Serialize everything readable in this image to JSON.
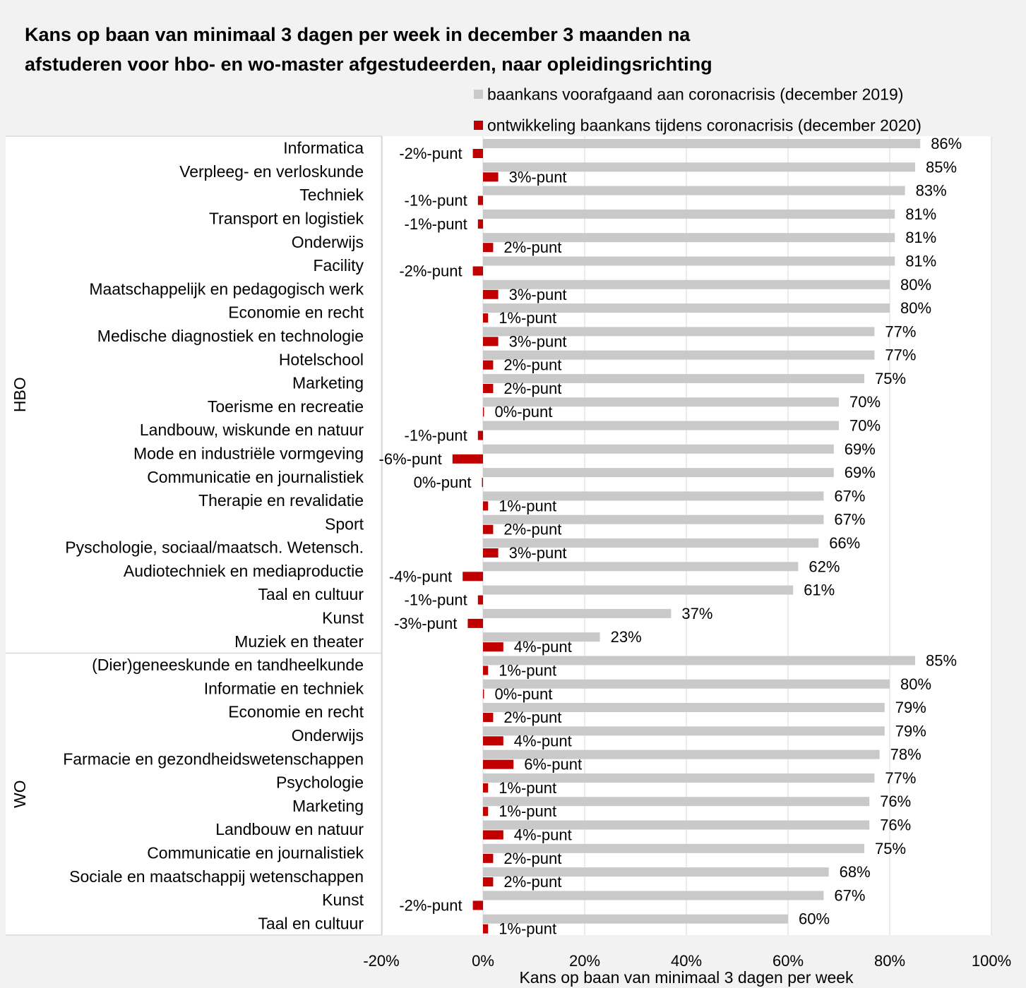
{
  "page": {
    "background": "#f2f2f2",
    "plot_background": "#ffffff",
    "gridline_color": "#d9d9d9"
  },
  "chart_data": {
    "type": "bar",
    "orientation": "horizontal",
    "title_lines": [
      "Kans op baan van minimaal 3 dagen per week in december 3 maanden na",
      "afstuderen voor hbo- en wo-master afgestudeerden, naar opleidingsrichting"
    ],
    "xlabel": "Kans op baan van minimaal 3 dagen per week",
    "xlim": [
      -20,
      100
    ],
    "xticks": [
      -20,
      0,
      20,
      40,
      60,
      80,
      100
    ],
    "xtick_labels": [
      "-20%",
      "0%",
      "20%",
      "40%",
      "60%",
      "80%",
      "100%"
    ],
    "grid": true,
    "legend": "top-right",
    "groups": [
      {
        "name": "HBO",
        "categories": [
          "Informatica",
          "Verpleeg- en verloskunde",
          "Techniek",
          "Transport en logistiek",
          "Onderwijs",
          "Facility",
          "Maatschappelijk en pedagogisch werk",
          "Economie en recht",
          "Medische diagnostiek en technologie",
          "Hotelschool",
          "Marketing",
          "Toerisme en recreatie",
          "Landbouw, wiskunde en natuur",
          "Mode en industriële vormgeving",
          "Communicatie en journalistiek",
          "Therapie en revalidatie",
          "Sport",
          "Pyschologie, sociaal/maatsch. Wetensch.",
          "Audiotechniek en mediaproductie",
          "Taal en cultuur",
          "Kunst",
          "Muziek en theater"
        ]
      },
      {
        "name": "WO",
        "categories": [
          "(Dier)geneeskunde en tandheelkunde",
          "Informatie en techniek",
          "Economie en recht",
          "Onderwijs",
          "Farmacie en gezondheidswetenschappen",
          "Psychologie",
          "Marketing",
          "Landbouw en natuur",
          "Communicatie en journalistiek",
          "Sociale en maatschappij wetenschappen",
          "Kunst",
          "Taal en cultuur"
        ]
      }
    ],
    "series": [
      {
        "name": "baankans voorafgaand aan coronacrisis (december 2019)",
        "color": "#c9c9c9",
        "values": [
          86,
          85,
          83,
          81,
          81,
          81,
          80,
          80,
          77,
          77,
          75,
          70,
          70,
          69,
          69,
          67,
          67,
          66,
          62,
          61,
          37,
          23,
          85,
          80,
          79,
          79,
          78,
          77,
          76,
          76,
          75,
          68,
          67,
          60
        ],
        "labels": [
          "86%",
          "85%",
          "83%",
          "81%",
          "81%",
          "81%",
          "80%",
          "80%",
          "77%",
          "77%",
          "75%",
          "70%",
          "70%",
          "69%",
          "69%",
          "67%",
          "67%",
          "66%",
          "62%",
          "61%",
          "37%",
          "23%",
          "85%",
          "80%",
          "79%",
          "79%",
          "78%",
          "77%",
          "76%",
          "76%",
          "75%",
          "68%",
          "67%",
          "60%"
        ]
      },
      {
        "name": "ontwikkeling baankans tijdens coronacrisis (december 2020)",
        "color": "#c00000",
        "values": [
          -2,
          3,
          -1,
          -1,
          2,
          -2,
          3,
          1,
          3,
          2,
          2,
          0.2,
          -1,
          -6,
          -0.2,
          1,
          2,
          3,
          -4,
          -1,
          -3,
          4,
          1,
          0.2,
          2,
          4,
          6,
          1,
          1,
          4,
          2,
          2,
          -2,
          1
        ],
        "labels": [
          "-2%-punt",
          "3%-punt",
          "-1%-punt",
          "-1%-punt",
          "2%-punt",
          "-2%-punt",
          "3%-punt",
          "1%-punt",
          "3%-punt",
          "2%-punt",
          "2%-punt",
          "0%-punt",
          "-1%-punt",
          "-6%-punt",
          "0%-punt",
          "1%-punt",
          "2%-punt",
          "3%-punt",
          "-4%-punt",
          "-1%-punt",
          "-3%-punt",
          "4%-punt",
          "1%-punt",
          "0%-punt",
          "2%-punt",
          "4%-punt",
          "6%-punt",
          "1%-punt",
          "1%-punt",
          "4%-punt",
          "2%-punt",
          "2%-punt",
          "-2%-punt",
          "1%-punt"
        ]
      }
    ]
  }
}
